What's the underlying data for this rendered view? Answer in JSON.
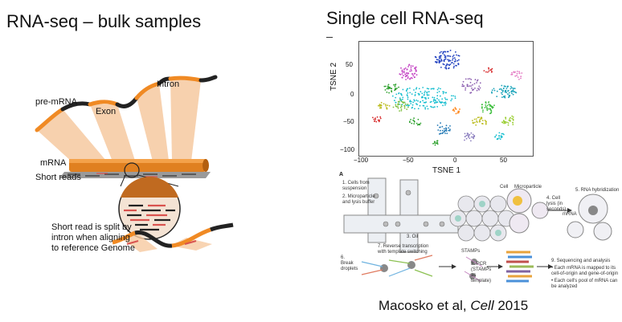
{
  "left_panel": {
    "title": "RNA-seq – bulk samples",
    "labels": {
      "pre_mrna": "pre-mRNA",
      "exon": "Exon",
      "intron": "Intron",
      "mrna": "mRNA",
      "short_reads": "Short reads",
      "split_note_line1": "Short read is split by",
      "split_note_line2": "intron when aligning",
      "split_note_line3": "to reference Genome"
    },
    "colors": {
      "exon": "#f08a24",
      "intron": "#222222",
      "beam": "#f6c9a0",
      "read": "#d9534f"
    }
  },
  "right_panel": {
    "title": "Single cell RNA-seq",
    "tsne": {
      "xlabel": "TSNE 1",
      "ylabel": "TSNE 2",
      "xticks": [
        "−100",
        "−50",
        "0",
        "50"
      ],
      "yticks": [
        "50",
        "0",
        "−50",
        "−100"
      ]
    },
    "workflow": {
      "panel_label": "A",
      "step1": "1. Cells from suspension",
      "step2": "2. Microparticle and lysis buffer",
      "step3": "3. Oil",
      "cell": "Cell",
      "microparticle": "Microparticle",
      "step4": "4. Cell lysis (in seconds)",
      "step5": "5. RNA hybridization",
      "mrna": "mRNA",
      "step6": "6. Break droplets",
      "step7": "7. Reverse transcription with template switching",
      "stamps": "STAMPs",
      "step8": "8. PCR (STAMPs as template)",
      "step9": "9. Sequencing and analysis",
      "bullet1": "• Each mRNA is mapped to its cell-of-origin and gene-of-origin",
      "bullet2": "• Each cell's pool of mRNA can be analyzed"
    },
    "citation_pre": "Macosko et al, ",
    "citation_journal": "Cell",
    "citation_year": " 2015"
  }
}
